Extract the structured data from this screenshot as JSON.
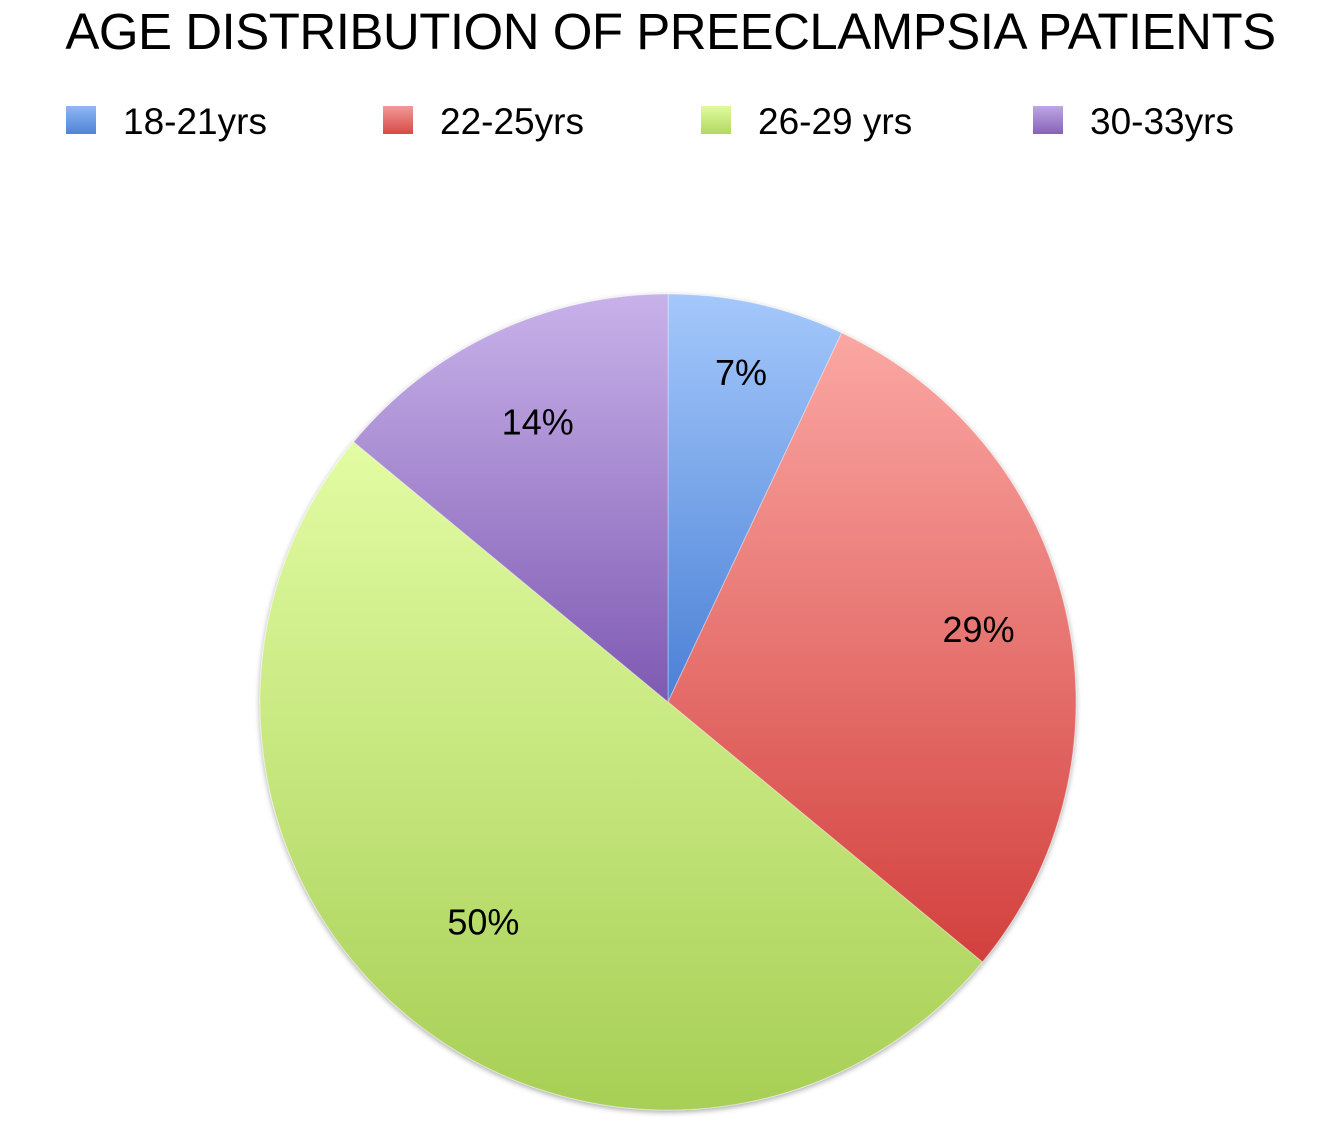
{
  "chart_data": {
    "type": "pie",
    "title": "AGE DISTRIBUTION OF PREECLAMPSIA PATIENTS",
    "legend_position": "top",
    "categories": [
      "18-21yrs",
      "22-25yrs",
      "26-29 yrs",
      "30-33yrs"
    ],
    "values": [
      7,
      29,
      50,
      14
    ],
    "data_labels": [
      "7%",
      "29%",
      "50%",
      "14%"
    ],
    "colors": {
      "18-21yrs": "#6d9ee8",
      "22-25yrs": "#e36b68",
      "26-29 yrs": "#c6e884",
      "30-33yrs": "#a184cc"
    }
  }
}
